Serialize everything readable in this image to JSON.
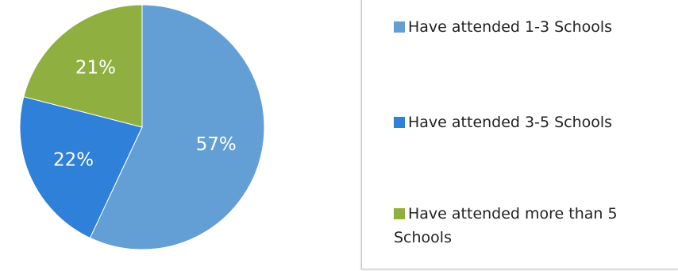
{
  "chart_data": {
    "type": "pie",
    "series": [
      {
        "name": "",
        "labels": [
          "Have attended 1-3 Schools",
          "Have attended 3-5 Schools",
          "Have attended more than 5 Schools"
        ],
        "values": [
          57,
          22,
          21
        ],
        "value_labels": [
          "57%",
          "22%",
          "21%"
        ],
        "colors": [
          "#639fd4",
          "#2e80d8",
          "#8fb040"
        ]
      }
    ],
    "legend": {
      "placement": "right",
      "items": [
        {
          "label": "Have attended 1-3 Schools",
          "color": "#639fd4"
        },
        {
          "label": "Have attended 3-5 Schools",
          "color": "#2e80d8"
        },
        {
          "label": "Have attended more than 5 Schools",
          "color": "#8fb040"
        }
      ]
    }
  }
}
